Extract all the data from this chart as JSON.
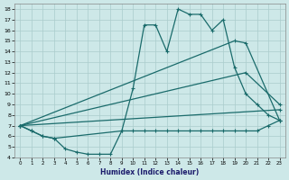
{
  "xlabel": "Humidex (Indice chaleur)",
  "xlim": [
    -0.5,
    23.5
  ],
  "ylim": [
    4,
    18.5
  ],
  "xticks": [
    0,
    1,
    2,
    3,
    4,
    5,
    6,
    7,
    8,
    9,
    10,
    11,
    12,
    13,
    14,
    15,
    16,
    17,
    18,
    19,
    20,
    21,
    22,
    23
  ],
  "yticks": [
    4,
    5,
    6,
    7,
    8,
    9,
    10,
    11,
    12,
    13,
    14,
    15,
    16,
    17,
    18
  ],
  "bg_color": "#cde8e8",
  "line_color": "#1a6b6b",
  "grid_color": "#aacccc",
  "series1_x": [
    0,
    1,
    2,
    3,
    4,
    5,
    6,
    7,
    8,
    9,
    10,
    11,
    12,
    13,
    14,
    15,
    16,
    17,
    18,
    19,
    20,
    21,
    22,
    23
  ],
  "series1_y": [
    7.0,
    6.5,
    6.0,
    5.8,
    4.8,
    4.5,
    4.3,
    4.3,
    4.3,
    6.5,
    6.5,
    6.5,
    6.5,
    6.5,
    6.5,
    6.5,
    6.5,
    6.5,
    6.5,
    6.5,
    6.5,
    6.5,
    7.0,
    7.5
  ],
  "series2_x": [
    0,
    1,
    2,
    3,
    9,
    10,
    11,
    12,
    13,
    14,
    15,
    16,
    17,
    18,
    19,
    20,
    21,
    22,
    23
  ],
  "series2_y": [
    7.0,
    6.5,
    6.0,
    5.8,
    6.5,
    10.5,
    16.5,
    16.5,
    14.0,
    18.0,
    17.5,
    17.5,
    16.0,
    17.0,
    12.5,
    10.0,
    9.0,
    8.0,
    7.5
  ],
  "series3_x": [
    0,
    23
  ],
  "series3_y": [
    7.0,
    8.5
  ],
  "series4_x": [
    0,
    20,
    23
  ],
  "series4_y": [
    7.0,
    12.0,
    9.0
  ],
  "series5_x": [
    0,
    19,
    20,
    23
  ],
  "series5_y": [
    7.0,
    15.0,
    14.8,
    7.5
  ]
}
